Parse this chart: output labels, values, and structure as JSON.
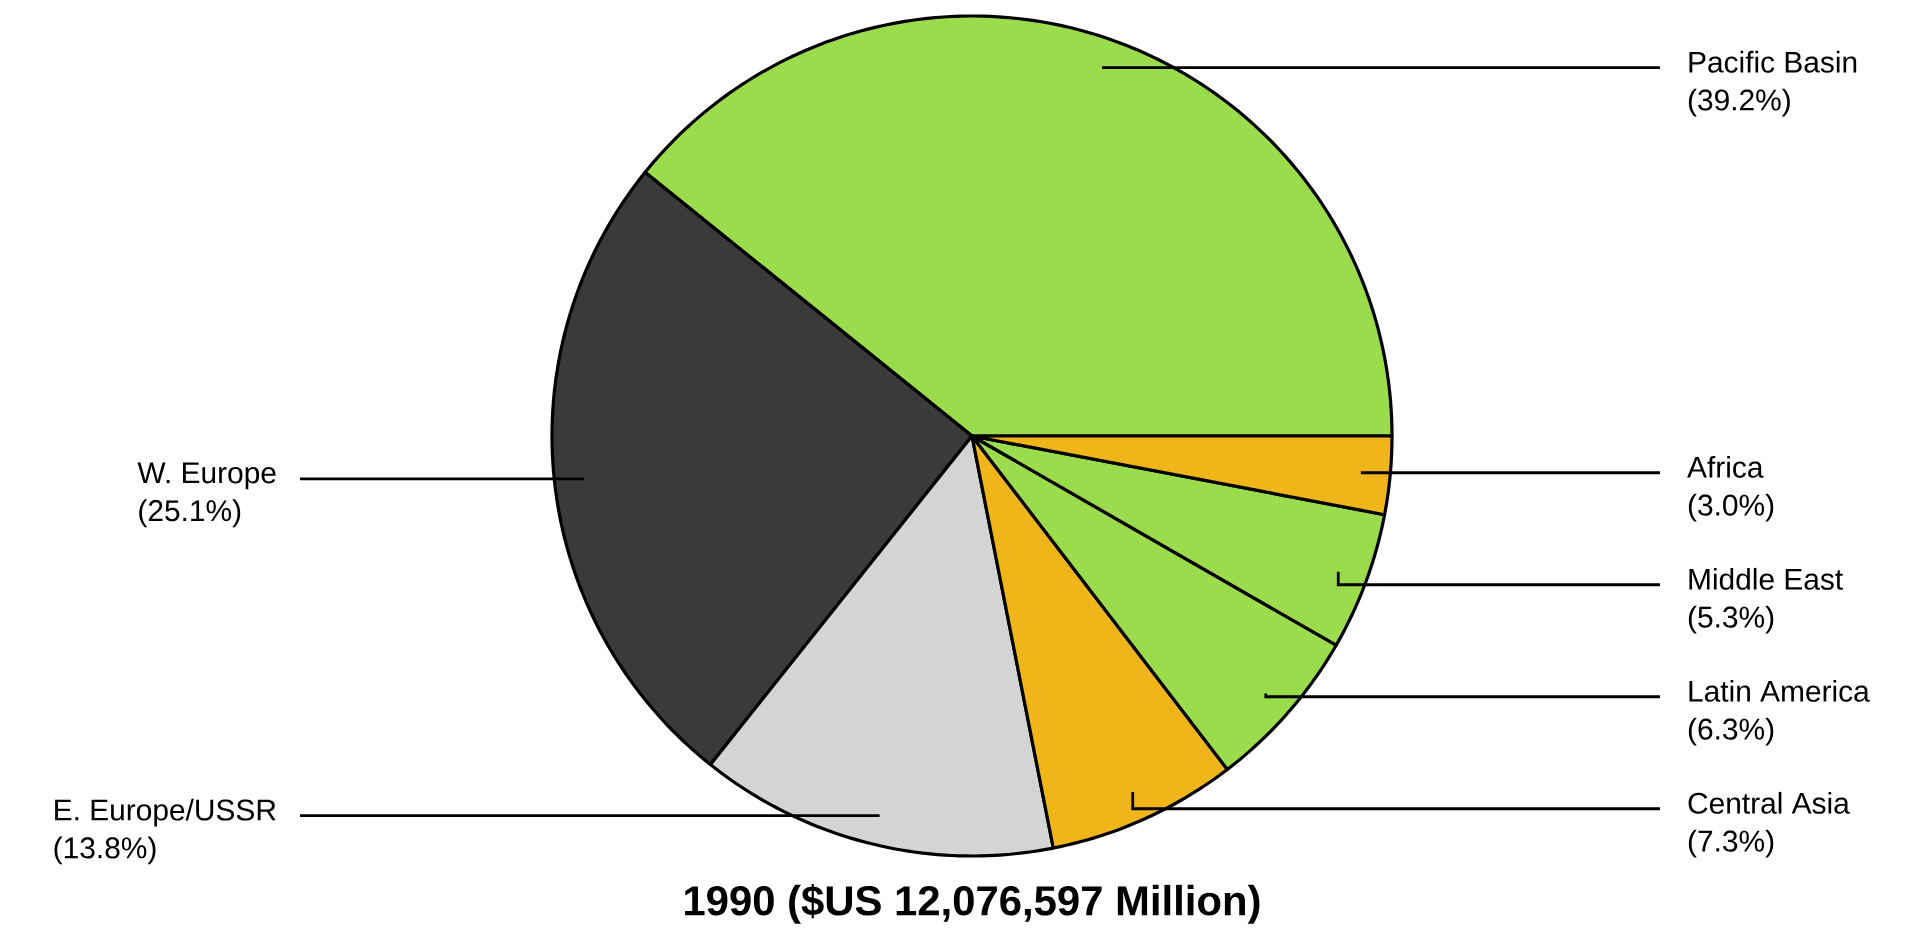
{
  "chart_data": {
    "type": "pie",
    "title": "1990 ($US 12,076,597 Million)",
    "categories": [
      "Pacific Basin",
      "W. Europe",
      "E. Europe/USSR",
      "Central Asia",
      "Latin America",
      "Middle East",
      "Africa"
    ],
    "values": [
      39.2,
      25.1,
      13.8,
      7.3,
      6.3,
      5.3,
      3.0
    ],
    "value_labels": [
      "(39.2%)",
      "(25.1%)",
      "(13.8%)",
      "(7.3%)",
      "(6.3%)",
      "(5.3%)",
      "(3.0%)"
    ],
    "colors": [
      "#9bdc4c",
      "#3a3a3a",
      "#d4d4d4",
      "#f0b519",
      "#9bdc4c",
      "#9bdc4c",
      "#f0b519"
    ]
  }
}
